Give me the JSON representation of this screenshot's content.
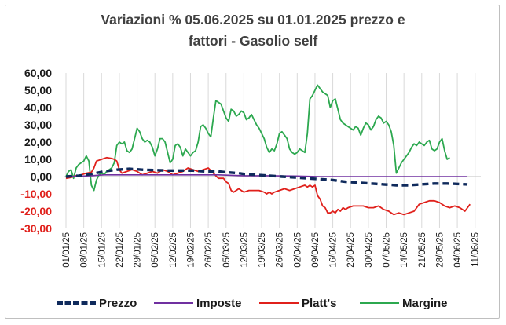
{
  "chart_data": {
    "type": "line",
    "title_lines": [
      "Variazioni % 05.06.2025 su 01.01.2025 prezzo e",
      "fattori - Gasolio self"
    ],
    "ylim": [
      -30,
      60
    ],
    "y_ticks": [
      "60,00",
      "50,00",
      "40,00",
      "30,00",
      "20,00",
      "10,00",
      "0,00",
      "-10,00",
      "-20,00",
      "-30,00"
    ],
    "y_tick_values": [
      60,
      50,
      40,
      30,
      20,
      10,
      0,
      -10,
      -20,
      -30
    ],
    "x_ticks": [
      "01/01/25",
      "08/01/25",
      "15/01/25",
      "22/01/25",
      "29/01/25",
      "05/02/25",
      "12/02/25",
      "19/02/25",
      "26/02/25",
      "05/03/25",
      "12/03/25",
      "19/03/25",
      "26/03/25",
      "02/04/25",
      "09/04/25",
      "16/04/25",
      "23/04/25",
      "30/04/25",
      "07/05/25",
      "14/05/25",
      "21/05/25",
      "28/05/25",
      "04/06/25",
      "11/06/25"
    ],
    "x_range_days": [
      0,
      161
    ],
    "grid": "vertical",
    "legend_position": "bottom",
    "series": [
      {
        "name": "Prezzo",
        "color": "#0f2a5c",
        "style": "dashed",
        "points": [
          [
            0,
            0
          ],
          [
            5,
            0.5
          ],
          [
            10,
            1.5
          ],
          [
            15,
            3
          ],
          [
            20,
            4
          ],
          [
            25,
            4.5
          ],
          [
            30,
            4
          ],
          [
            40,
            3.5
          ],
          [
            50,
            3.5
          ],
          [
            55,
            3
          ],
          [
            60,
            3
          ],
          [
            63,
            2.5
          ],
          [
            68,
            2
          ],
          [
            70,
            1.5
          ],
          [
            75,
            1
          ],
          [
            80,
            0.5
          ],
          [
            85,
            0
          ],
          [
            90,
            -0.5
          ],
          [
            95,
            -1
          ],
          [
            100,
            -1.5
          ],
          [
            105,
            -2
          ],
          [
            110,
            -3
          ],
          [
            115,
            -3.5
          ],
          [
            120,
            -4
          ],
          [
            125,
            -4.5
          ],
          [
            130,
            -5
          ],
          [
            135,
            -5
          ],
          [
            140,
            -4.5
          ],
          [
            145,
            -4
          ],
          [
            150,
            -4
          ],
          [
            155,
            -4.3
          ],
          [
            158,
            -4.5
          ]
        ]
      },
      {
        "name": "Imposte",
        "color": "#7030a0",
        "style": "solid",
        "points": [
          [
            0,
            0
          ],
          [
            10,
            0.5
          ],
          [
            15,
            1
          ],
          [
            20,
            1
          ],
          [
            30,
            1
          ],
          [
            40,
            1
          ],
          [
            50,
            1
          ],
          [
            60,
            1
          ],
          [
            70,
            0.5
          ],
          [
            80,
            0.5
          ],
          [
            90,
            0.3
          ],
          [
            100,
            0
          ],
          [
            110,
            0
          ],
          [
            120,
            0
          ],
          [
            130,
            0
          ],
          [
            140,
            0
          ],
          [
            150,
            0
          ],
          [
            158,
            0
          ]
        ]
      },
      {
        "name": "Platt's",
        "color": "#e0201b",
        "style": "solid",
        "points": [
          [
            0,
            -1
          ],
          [
            2,
            -0.5
          ],
          [
            4,
            0.5
          ],
          [
            6,
            1
          ],
          [
            8,
            2
          ],
          [
            10,
            2.5
          ],
          [
            11,
            5
          ],
          [
            12,
            9
          ],
          [
            14,
            10
          ],
          [
            16,
            11
          ],
          [
            18,
            10.5
          ],
          [
            19,
            10
          ],
          [
            20,
            9
          ],
          [
            21,
            4
          ],
          [
            22,
            2
          ],
          [
            24,
            3
          ],
          [
            26,
            4
          ],
          [
            28,
            3
          ],
          [
            30,
            1
          ],
          [
            32,
            2
          ],
          [
            34,
            3
          ],
          [
            36,
            2
          ],
          [
            38,
            4
          ],
          [
            40,
            3
          ],
          [
            42,
            1
          ],
          [
            44,
            2
          ],
          [
            46,
            3
          ],
          [
            48,
            5
          ],
          [
            50,
            4
          ],
          [
            52,
            3
          ],
          [
            54,
            4
          ],
          [
            56,
            5
          ],
          [
            58,
            2
          ],
          [
            60,
            -1
          ],
          [
            62,
            -1
          ],
          [
            63,
            -3
          ],
          [
            64,
            -4
          ],
          [
            65,
            -8
          ],
          [
            66,
            -9
          ],
          [
            67,
            -8
          ],
          [
            68,
            -7
          ],
          [
            69,
            -8
          ],
          [
            70,
            -9
          ],
          [
            72,
            -8
          ],
          [
            74,
            -8
          ],
          [
            76,
            -8
          ],
          [
            78,
            -9
          ],
          [
            79,
            -10
          ],
          [
            80,
            -9
          ],
          [
            81,
            -10
          ],
          [
            82,
            -9
          ],
          [
            84,
            -8
          ],
          [
            86,
            -7
          ],
          [
            88,
            -8
          ],
          [
            90,
            -7
          ],
          [
            92,
            -6
          ],
          [
            94,
            -5
          ],
          [
            95,
            -6
          ],
          [
            96,
            -5
          ],
          [
            97,
            -6
          ],
          [
            98,
            -5
          ],
          [
            99,
            -11
          ],
          [
            100,
            -13
          ],
          [
            101,
            -17
          ],
          [
            102,
            -18
          ],
          [
            103,
            -21
          ],
          [
            104,
            -21
          ],
          [
            105,
            -20
          ],
          [
            106,
            -21
          ],
          [
            107,
            -19
          ],
          [
            108,
            -20
          ],
          [
            109,
            -18
          ],
          [
            110,
            -19
          ],
          [
            111,
            -18
          ],
          [
            113,
            -17
          ],
          [
            115,
            -17
          ],
          [
            117,
            -17
          ],
          [
            119,
            -18
          ],
          [
            121,
            -18
          ],
          [
            123,
            -17
          ],
          [
            125,
            -19
          ],
          [
            127,
            -20
          ],
          [
            129,
            -22
          ],
          [
            131,
            -21
          ],
          [
            133,
            -22
          ],
          [
            135,
            -21
          ],
          [
            137,
            -20
          ],
          [
            139,
            -16
          ],
          [
            141,
            -15
          ],
          [
            143,
            -14
          ],
          [
            145,
            -14
          ],
          [
            147,
            -15
          ],
          [
            149,
            -17
          ],
          [
            151,
            -18
          ],
          [
            153,
            -17
          ],
          [
            155,
            -18
          ],
          [
            157,
            -20
          ],
          [
            158,
            -18
          ],
          [
            159,
            -16
          ]
        ]
      },
      {
        "name": "Margine",
        "color": "#2ca84f",
        "style": "solid",
        "points": [
          [
            0,
            0
          ],
          [
            1,
            3
          ],
          [
            2,
            4
          ],
          [
            3,
            -1
          ],
          [
            4,
            5
          ],
          [
            5,
            7
          ],
          [
            6,
            8
          ],
          [
            7,
            9
          ],
          [
            8,
            12
          ],
          [
            9,
            9
          ],
          [
            10,
            -5
          ],
          [
            11,
            -8
          ],
          [
            12,
            -2
          ],
          [
            13,
            1
          ],
          [
            14,
            2
          ],
          [
            15,
            1
          ],
          [
            16,
            3
          ],
          [
            17,
            4
          ],
          [
            18,
            5
          ],
          [
            19,
            8
          ],
          [
            20,
            18
          ],
          [
            21,
            20
          ],
          [
            22,
            19
          ],
          [
            23,
            20
          ],
          [
            24,
            15
          ],
          [
            25,
            14
          ],
          [
            26,
            16
          ],
          [
            27,
            22
          ],
          [
            28,
            28
          ],
          [
            29,
            26
          ],
          [
            30,
            22
          ],
          [
            31,
            20
          ],
          [
            32,
            21
          ],
          [
            33,
            20
          ],
          [
            34,
            17
          ],
          [
            35,
            12
          ],
          [
            36,
            16
          ],
          [
            37,
            22
          ],
          [
            38,
            22
          ],
          [
            39,
            20
          ],
          [
            40,
            14
          ],
          [
            41,
            8
          ],
          [
            42,
            10
          ],
          [
            43,
            18
          ],
          [
            44,
            19
          ],
          [
            45,
            17
          ],
          [
            46,
            12
          ],
          [
            47,
            16
          ],
          [
            48,
            14
          ],
          [
            49,
            12
          ],
          [
            50,
            14
          ],
          [
            51,
            15
          ],
          [
            52,
            20
          ],
          [
            53,
            29
          ],
          [
            54,
            30
          ],
          [
            55,
            28
          ],
          [
            56,
            25
          ],
          [
            57,
            23
          ],
          [
            58,
            34
          ],
          [
            59,
            44
          ],
          [
            60,
            43
          ],
          [
            61,
            42
          ],
          [
            62,
            38
          ],
          [
            63,
            34
          ],
          [
            64,
            32
          ],
          [
            65,
            39
          ],
          [
            66,
            38
          ],
          [
            67,
            35
          ],
          [
            68,
            36
          ],
          [
            69,
            38
          ],
          [
            70,
            37
          ],
          [
            71,
            33
          ],
          [
            72,
            34
          ],
          [
            73,
            36
          ],
          [
            74,
            33
          ],
          [
            75,
            30
          ],
          [
            76,
            28
          ],
          [
            77,
            25
          ],
          [
            78,
            22
          ],
          [
            79,
            17
          ],
          [
            80,
            14
          ],
          [
            81,
            16
          ],
          [
            82,
            15
          ],
          [
            83,
            19
          ],
          [
            84,
            25
          ],
          [
            85,
            26
          ],
          [
            86,
            24
          ],
          [
            87,
            22
          ],
          [
            88,
            16
          ],
          [
            89,
            14
          ],
          [
            90,
            13
          ],
          [
            91,
            14
          ],
          [
            92,
            16
          ],
          [
            93,
            15
          ],
          [
            94,
            14
          ],
          [
            95,
            25
          ],
          [
            96,
            45
          ],
          [
            97,
            47
          ],
          [
            98,
            50
          ],
          [
            99,
            53
          ],
          [
            100,
            51
          ],
          [
            101,
            49
          ],
          [
            102,
            48
          ],
          [
            103,
            47
          ],
          [
            104,
            40
          ],
          [
            105,
            44
          ],
          [
            106,
            45
          ],
          [
            107,
            39
          ],
          [
            108,
            33
          ],
          [
            109,
            31
          ],
          [
            110,
            30
          ],
          [
            111,
            29
          ],
          [
            112,
            28
          ],
          [
            113,
            27
          ],
          [
            114,
            29
          ],
          [
            115,
            28
          ],
          [
            116,
            24
          ],
          [
            117,
            28
          ],
          [
            118,
            31
          ],
          [
            119,
            30
          ],
          [
            120,
            27
          ],
          [
            121,
            29
          ],
          [
            122,
            33
          ],
          [
            123,
            35
          ],
          [
            124,
            34
          ],
          [
            125,
            31
          ],
          [
            126,
            32
          ],
          [
            127,
            30
          ],
          [
            128,
            26
          ],
          [
            129,
            18
          ],
          [
            130,
            2
          ],
          [
            131,
            5
          ],
          [
            132,
            8
          ],
          [
            133,
            10
          ],
          [
            134,
            12
          ],
          [
            135,
            14
          ],
          [
            136,
            17
          ],
          [
            137,
            19
          ],
          [
            138,
            18
          ],
          [
            139,
            20
          ],
          [
            140,
            19
          ],
          [
            141,
            18
          ],
          [
            142,
            20
          ],
          [
            143,
            21
          ],
          [
            144,
            16
          ],
          [
            145,
            15
          ],
          [
            146,
            16
          ],
          [
            147,
            20
          ],
          [
            148,
            22
          ],
          [
            149,
            15
          ],
          [
            150,
            10
          ],
          [
            151,
            11
          ]
        ]
      }
    ]
  },
  "colors": {
    "axis_tick_positive": "#1a1a1a",
    "axis_tick_negative": "#e0201b",
    "title": "#404040",
    "grid": "#d9d9d9"
  }
}
